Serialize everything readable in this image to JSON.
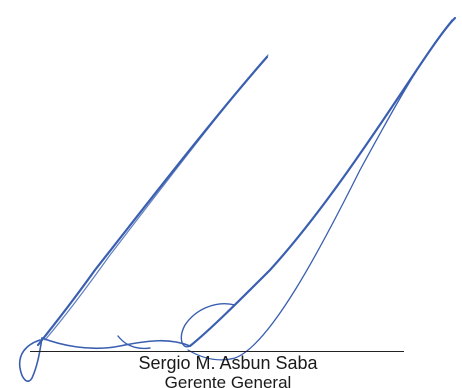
{
  "signature_block": {
    "name": "Sergio M. Asbun Saba",
    "title": "Gerente General",
    "ink_color": "#3a5fb0",
    "line_color": "#222222"
  },
  "signature_graphic": {
    "icon": "handwritten-signature",
    "description_visible": false
  }
}
